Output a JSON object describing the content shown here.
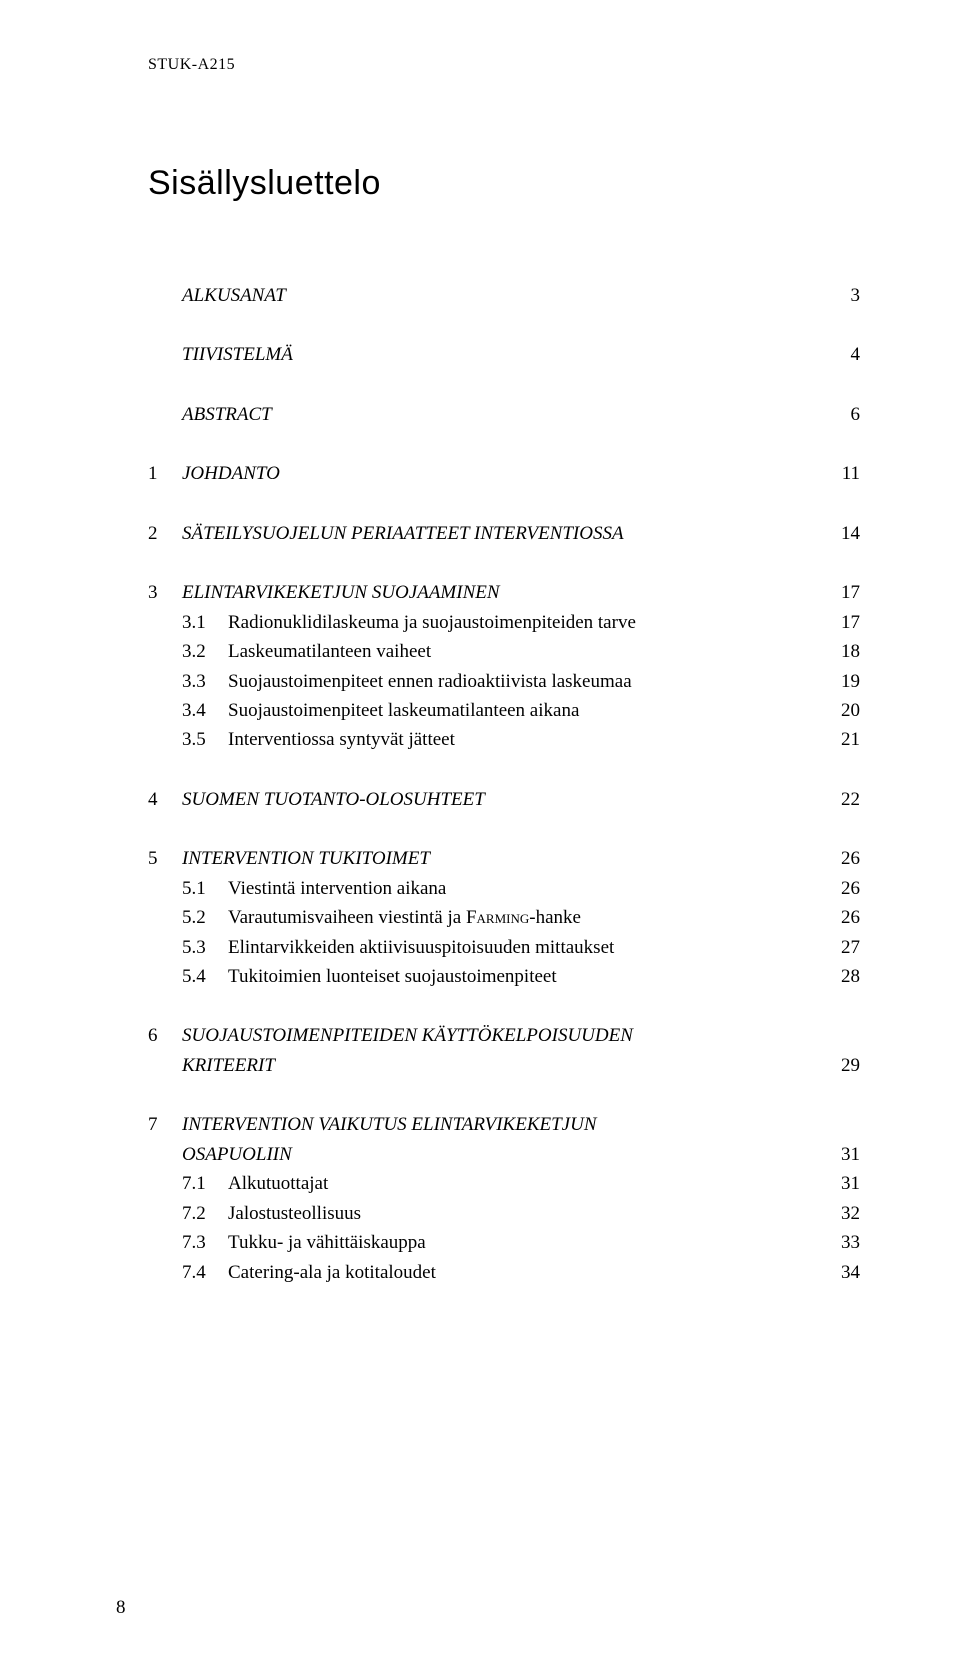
{
  "header": "STUK-A215",
  "title": "Sisällysluettelo",
  "toc": [
    {
      "type": "main",
      "num": "",
      "label": "ALKUSANAT",
      "page": "3",
      "italic": true
    },
    {
      "type": "gap"
    },
    {
      "type": "main",
      "num": "",
      "label": "TIIVISTELMÄ",
      "page": "4",
      "italic": true
    },
    {
      "type": "gap"
    },
    {
      "type": "main",
      "num": "",
      "label": "ABSTRACT",
      "page": "6",
      "italic": true
    },
    {
      "type": "gap"
    },
    {
      "type": "main",
      "num": "1",
      "label": "JOHDANTO",
      "page": "11",
      "italic": true
    },
    {
      "type": "gap"
    },
    {
      "type": "main",
      "num": "2",
      "label": "SÄTEILYSUOJELUN PERIAATTEET INTERVENTIOSSA",
      "page": "14",
      "italic": true
    },
    {
      "type": "gap"
    },
    {
      "type": "main",
      "num": "3",
      "label": "ELINTARVIKEKETJUN SUOJAAMINEN",
      "page": "17",
      "italic": true
    },
    {
      "type": "sub",
      "num": "3.1",
      "label": "Radionuklidilaskeuma ja suojaustoimenpiteiden tarve",
      "page": "17"
    },
    {
      "type": "sub",
      "num": "3.2",
      "label": "Laskeumatilanteen vaiheet",
      "page": "18"
    },
    {
      "type": "sub",
      "num": "3.3",
      "label": "Suojaustoimenpiteet ennen radioaktiivista laskeumaa",
      "page": "19"
    },
    {
      "type": "sub",
      "num": "3.4",
      "label": "Suojaustoimenpiteet laskeumatilanteen aikana",
      "page": "20"
    },
    {
      "type": "sub",
      "num": "3.5",
      "label": "Interventiossa syntyvät jätteet",
      "page": "21"
    },
    {
      "type": "gap"
    },
    {
      "type": "main",
      "num": "4",
      "label": "SUOMEN TUOTANTO-OLOSUHTEET",
      "page": "22",
      "italic": true
    },
    {
      "type": "gap"
    },
    {
      "type": "main",
      "num": "5",
      "label": "INTERVENTION TUKITOIMET",
      "page": "26",
      "italic": true
    },
    {
      "type": "sub",
      "num": "5.1",
      "label": "Viestintä intervention aikana",
      "page": "26"
    },
    {
      "type": "sub",
      "num": "5.2",
      "label": "Varautumisvaiheen viestintä ja FARMING-hanke",
      "page": "26",
      "smallcaps_word": "Farming"
    },
    {
      "type": "sub",
      "num": "5.3",
      "label": "Elintarvikkeiden aktiivisuuspitoisuuden mittaukset",
      "page": "27"
    },
    {
      "type": "sub",
      "num": "5.4",
      "label": "Tukitoimien luonteiset suojaustoimenpiteet",
      "page": "28"
    },
    {
      "type": "gap"
    },
    {
      "type": "main",
      "num": "6",
      "label": "SUOJAUSTOIMENPITEIDEN KÄYTTÖKELPOISUUDEN",
      "page": "",
      "italic": true
    },
    {
      "type": "main_cont",
      "label": "KRITEERIT",
      "page": "29",
      "italic": true
    },
    {
      "type": "gap"
    },
    {
      "type": "main",
      "num": "7",
      "label": "INTERVENTION VAIKUTUS ELINTARVIKEKETJUN",
      "page": "",
      "italic": true
    },
    {
      "type": "main_cont",
      "label": "OSAPUOLIIN",
      "page": "31",
      "italic": true
    },
    {
      "type": "sub",
      "num": "7.1",
      "label": "Alkutuottajat",
      "page": "31"
    },
    {
      "type": "sub",
      "num": "7.2",
      "label": "Jalostusteollisuus",
      "page": "32"
    },
    {
      "type": "sub",
      "num": "7.3",
      "label": "Tukku- ja vähittäiskauppa",
      "page": "33"
    },
    {
      "type": "sub",
      "num": "7.4",
      "label": "Catering-ala ja kotitaloudet",
      "page": "34"
    }
  ],
  "page_number": "8"
}
